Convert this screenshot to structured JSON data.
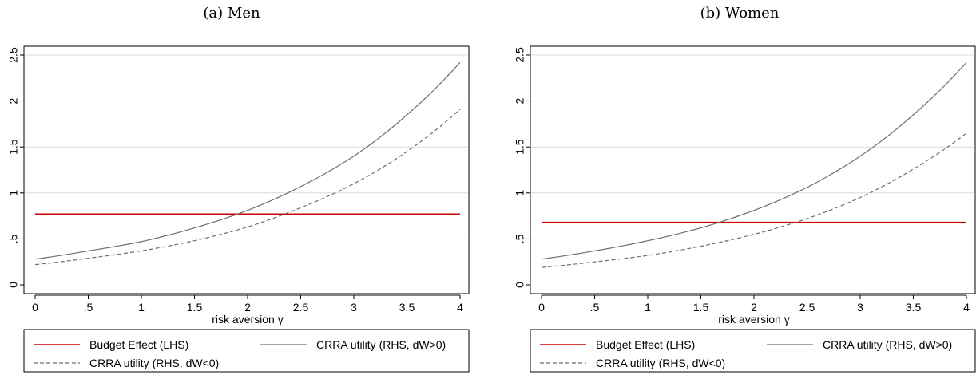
{
  "chart_data": [
    {
      "type": "line",
      "title": "(a) Men",
      "xlabel": "risk aversion γ",
      "ylabel": "",
      "xlim": [
        0,
        4
      ],
      "ylim": [
        0,
        2.5
      ],
      "xticks": [
        0,
        0.5,
        1,
        1.5,
        2,
        2.5,
        3,
        3.5,
        4
      ],
      "xtick_labels": [
        "0",
        ".5",
        "1",
        "1.5",
        "2",
        "2.5",
        "3",
        "3.5",
        "4"
      ],
      "yticks": [
        0,
        0.5,
        1,
        1.5,
        2,
        2.5
      ],
      "ytick_labels": [
        "0",
        ".5",
        "1",
        "1.5",
        "2",
        "2.5"
      ],
      "grid": "horizontal",
      "legend_position": "bottom",
      "series": [
        {
          "name": "Budget Effect (LHS)",
          "color": "#cc0000",
          "style": "solid",
          "x": [
            0,
            4
          ],
          "y": [
            0.77,
            0.77
          ]
        },
        {
          "name": "CRRA utility (RHS, dW>0)",
          "color": "#6e6e6e",
          "style": "solid",
          "x": [
            0,
            0.5,
            1,
            1.5,
            2,
            2.5,
            3,
            3.5,
            4
          ],
          "y": [
            0.28,
            0.37,
            0.47,
            0.62,
            0.81,
            1.07,
            1.4,
            1.85,
            2.42
          ]
        },
        {
          "name": "CRRA utility (RHS, dW<0)",
          "color": "#6e6e6e",
          "style": "dashed",
          "x": [
            0,
            0.5,
            1,
            1.5,
            2,
            2.5,
            3,
            3.5,
            4
          ],
          "y": [
            0.22,
            0.29,
            0.37,
            0.48,
            0.63,
            0.84,
            1.1,
            1.45,
            1.91
          ]
        }
      ]
    },
    {
      "type": "line",
      "title": "(b) Women",
      "xlabel": "risk aversion γ",
      "ylabel": "",
      "xlim": [
        0,
        4
      ],
      "ylim": [
        0,
        2.5
      ],
      "xticks": [
        0,
        0.5,
        1,
        1.5,
        2,
        2.5,
        3,
        3.5,
        4
      ],
      "xtick_labels": [
        "0",
        ".5",
        "1",
        "1.5",
        "2",
        "2.5",
        "3",
        "3.5",
        "4"
      ],
      "yticks": [
        0,
        0.5,
        1,
        1.5,
        2,
        2.5
      ],
      "ytick_labels": [
        "0",
        ".5",
        "1",
        "1.5",
        "2",
        "2.5"
      ],
      "grid": "horizontal",
      "legend_position": "bottom",
      "series": [
        {
          "name": "Budget Effect (LHS)",
          "color": "#cc0000",
          "style": "solid",
          "x": [
            0,
            4
          ],
          "y": [
            0.68,
            0.68
          ]
        },
        {
          "name": "CRRA utility (RHS, dW>0)",
          "color": "#6e6e6e",
          "style": "solid",
          "x": [
            0,
            0.5,
            1,
            1.5,
            2,
            2.5,
            3,
            3.5,
            4
          ],
          "y": [
            0.28,
            0.37,
            0.48,
            0.62,
            0.81,
            1.06,
            1.4,
            1.85,
            2.42
          ]
        },
        {
          "name": "CRRA utility (RHS, dW<0)",
          "color": "#6e6e6e",
          "style": "dashed",
          "x": [
            0,
            0.5,
            1,
            1.5,
            2,
            2.5,
            3,
            3.5,
            4
          ],
          "y": [
            0.19,
            0.25,
            0.32,
            0.42,
            0.55,
            0.72,
            0.95,
            1.26,
            1.65
          ]
        }
      ]
    }
  ]
}
